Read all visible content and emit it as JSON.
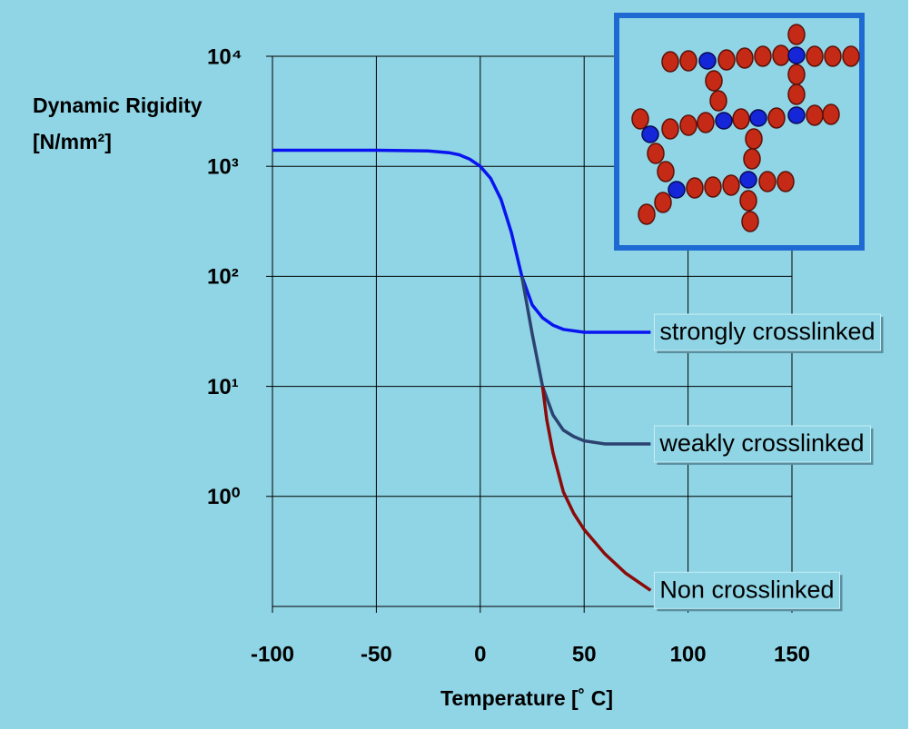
{
  "chart_data": {
    "type": "line",
    "ylabel": "Dynamic Rigidity",
    "ylabel_unit": "[N/mm²]",
    "xlabel": "Temperature [˚ C]",
    "log_y": true,
    "grid": true,
    "xlim": [
      -100,
      150
    ],
    "xticks": [
      -100,
      -50,
      0,
      50,
      100,
      150
    ],
    "ylim": [
      0.1,
      10000
    ],
    "yticks": [
      {
        "value": 1,
        "label": "10⁰"
      },
      {
        "value": 10,
        "label": "10¹"
      },
      {
        "value": 100,
        "label": "10²"
      },
      {
        "value": 1000,
        "label": "10³"
      },
      {
        "value": 10000,
        "label": "10⁴"
      }
    ],
    "series": [
      {
        "name": "strongly crosslinked",
        "color": "#0a14f0",
        "x": [
          -100,
          -50,
          -25,
          -15,
          -10,
          -5,
          0,
          5,
          10,
          15,
          20,
          25,
          30,
          35,
          40,
          50,
          60,
          82
        ],
        "values": [
          1400,
          1400,
          1380,
          1330,
          1270,
          1160,
          1000,
          780,
          500,
          250,
          100,
          55,
          42,
          36,
          33,
          31,
          31,
          31
        ]
      },
      {
        "name": "weakly crosslinked",
        "color": "#2c4270",
        "x": [
          20,
          25,
          30,
          35,
          40,
          45,
          50,
          60,
          82
        ],
        "values": [
          100,
          30,
          10,
          5.5,
          4,
          3.5,
          3.2,
          3,
          3
        ]
      },
      {
        "name": "Non crosslinked",
        "color": "#8b0a0a",
        "x": [
          30,
          32,
          35,
          40,
          45,
          50,
          60,
          70,
          82
        ],
        "values": [
          10,
          5,
          2.5,
          1.1,
          0.7,
          0.5,
          0.3,
          0.2,
          0.14
        ]
      }
    ]
  }
}
